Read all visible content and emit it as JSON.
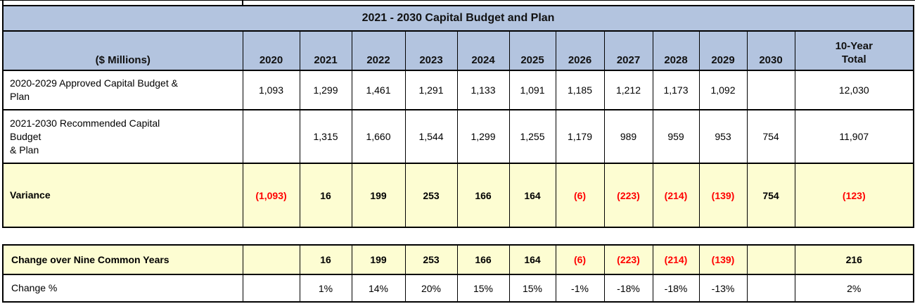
{
  "title": "2021 - 2030 Capital Budget and Plan",
  "columns": {
    "label": "($ Millions)",
    "years": [
      "2020",
      "2021",
      "2022",
      "2023",
      "2024",
      "2025",
      "2026",
      "2027",
      "2028",
      "2029",
      "2030"
    ],
    "total": "10-Year\nTotal"
  },
  "main_rows": [
    {
      "label": "2020-2029 Approved Capital Budget &\nPlan",
      "bold": false,
      "highlight": false,
      "values": [
        "1,093",
        "1,299",
        "1,461",
        "1,291",
        "1,133",
        "1,091",
        "1,185",
        "1,212",
        "1,173",
        "1,092",
        ""
      ],
      "total": "12,030"
    },
    {
      "label": "2021-2030 Recommended Capital Budget\n& Plan",
      "bold": false,
      "highlight": false,
      "values": [
        "",
        "1,315",
        "1,660",
        "1,544",
        "1,299",
        "1,255",
        "1,179",
        "989",
        "959",
        "953",
        "754"
      ],
      "total": "11,907"
    },
    {
      "label": "Variance",
      "bold": true,
      "highlight": true,
      "values": [
        "(1,093)",
        "16",
        "199",
        "253",
        "166",
        "164",
        "(6)",
        "(223)",
        "(214)",
        "(139)",
        "754"
      ],
      "total": "(123)"
    }
  ],
  "change_rows": [
    {
      "label": "Change over Nine Common Years",
      "bold": true,
      "highlight": true,
      "values": [
        "",
        "16",
        "199",
        "253",
        "166",
        "164",
        "(6)",
        "(223)",
        "(214)",
        "(139)",
        ""
      ],
      "total": "216"
    },
    {
      "label": "Change %",
      "bold": false,
      "highlight": false,
      "values": [
        "",
        "1%",
        "14%",
        "20%",
        "15%",
        "15%",
        "-1%",
        "-18%",
        "-18%",
        "-13%",
        ""
      ],
      "total": "2%"
    }
  ],
  "colors": {
    "header_bg": "#B3C4DF",
    "highlight_bg": "#FDFDD2",
    "negative_text": "#FF0000",
    "border": "#000000"
  }
}
